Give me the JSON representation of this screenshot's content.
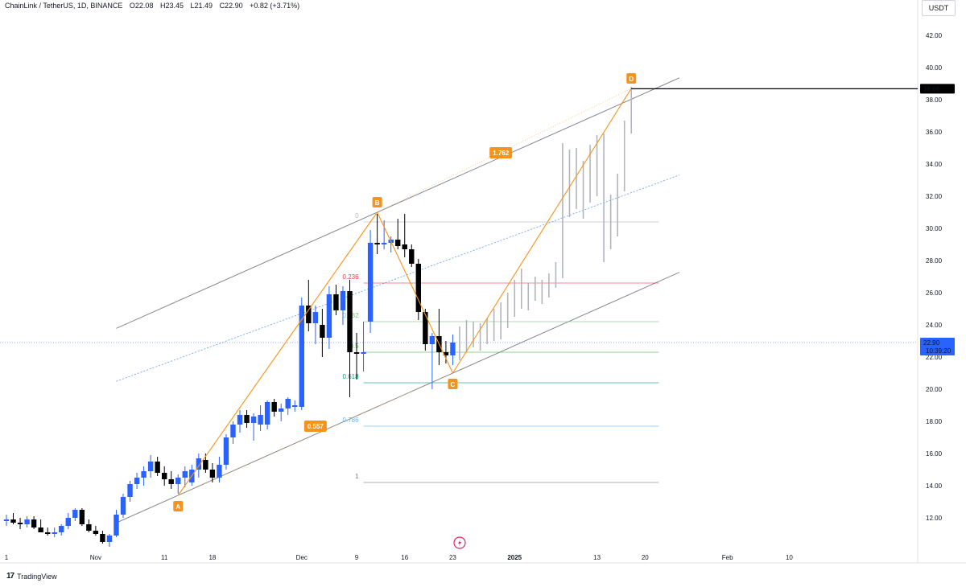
{
  "header": {
    "symbol": "ChainLink / TetherUS, 1D, BINANCE",
    "open": "O22.08",
    "high": "H23.45",
    "low": "L21.49",
    "close": "C22.90",
    "change": "+0.82 (+3.71%)"
  },
  "currency": "USDT",
  "brand": "TradingView",
  "colors": {
    "bull": "#2962ff",
    "bear": "#000000",
    "projection": "#b2b5be",
    "harmonic": "#f7931a",
    "channel": "#787b86",
    "median": "#5b9cf6"
  },
  "chart_data": {
    "type": "candlestick",
    "y_axis": {
      "min": 10,
      "max": 44,
      "ticks": [
        "12.00",
        "14.00",
        "16.00",
        "18.00",
        "20.00",
        "22.00",
        "24.00",
        "26.00",
        "28.00",
        "30.00",
        "32.00",
        "34.00",
        "36.00",
        "38.00",
        "40.00",
        "42.00"
      ]
    },
    "x_axis_labels": [
      {
        "label": "1",
        "day": 1
      },
      {
        "label": "Nov",
        "day": 14
      },
      {
        "label": "11",
        "day": 24
      },
      {
        "label": "18",
        "day": 31
      },
      {
        "label": "Dec",
        "day": 44
      },
      {
        "label": "9",
        "day": 52
      },
      {
        "label": "16",
        "day": 59
      },
      {
        "label": "23",
        "day": 66
      },
      {
        "label": "2025",
        "day": 75
      },
      {
        "label": "13",
        "day": 87
      },
      {
        "label": "20",
        "day": 94
      },
      {
        "label": "Feb",
        "day": 106
      },
      {
        "label": "10",
        "day": 115
      }
    ],
    "candles": [
      {
        "day": 1,
        "o": 11.8,
        "h": 12.2,
        "l": 11.5,
        "c": 11.9
      },
      {
        "day": 2,
        "o": 11.9,
        "h": 12.3,
        "l": 11.6,
        "c": 11.7
      },
      {
        "day": 3,
        "o": 11.7,
        "h": 12.0,
        "l": 11.3,
        "c": 11.6
      },
      {
        "day": 4,
        "o": 11.6,
        "h": 12.1,
        "l": 11.4,
        "c": 11.9
      },
      {
        "day": 5,
        "o": 11.9,
        "h": 12.1,
        "l": 11.3,
        "c": 11.4
      },
      {
        "day": 6,
        "o": 11.4,
        "h": 11.9,
        "l": 11.2,
        "c": 11.1
      },
      {
        "day": 7,
        "o": 11.1,
        "h": 11.4,
        "l": 10.9,
        "c": 11.0
      },
      {
        "day": 8,
        "o": 11.0,
        "h": 11.4,
        "l": 10.8,
        "c": 11.1
      },
      {
        "day": 9,
        "o": 11.1,
        "h": 11.6,
        "l": 10.9,
        "c": 11.5
      },
      {
        "day": 10,
        "o": 11.5,
        "h": 12.3,
        "l": 11.3,
        "c": 12.0
      },
      {
        "day": 11,
        "o": 12.0,
        "h": 12.6,
        "l": 11.8,
        "c": 12.5
      },
      {
        "day": 12,
        "o": 12.5,
        "h": 12.6,
        "l": 11.5,
        "c": 11.6
      },
      {
        "day": 13,
        "o": 11.6,
        "h": 11.9,
        "l": 11.1,
        "c": 11.2
      },
      {
        "day": 14,
        "o": 11.2,
        "h": 11.5,
        "l": 10.9,
        "c": 11.0
      },
      {
        "day": 15,
        "o": 11.0,
        "h": 11.2,
        "l": 10.4,
        "c": 10.5
      },
      {
        "day": 16,
        "o": 10.5,
        "h": 11.0,
        "l": 10.2,
        "c": 10.9
      },
      {
        "day": 17,
        "o": 10.9,
        "h": 12.5,
        "l": 10.8,
        "c": 12.2
      },
      {
        "day": 18,
        "o": 12.2,
        "h": 13.5,
        "l": 12.0,
        "c": 13.3
      },
      {
        "day": 19,
        "o": 13.3,
        "h": 14.3,
        "l": 13.0,
        "c": 14.1
      },
      {
        "day": 20,
        "o": 14.1,
        "h": 14.8,
        "l": 13.8,
        "c": 14.5
      },
      {
        "day": 21,
        "o": 14.5,
        "h": 15.2,
        "l": 14.0,
        "c": 14.9
      },
      {
        "day": 22,
        "o": 14.9,
        "h": 15.9,
        "l": 14.5,
        "c": 15.5
      },
      {
        "day": 23,
        "o": 15.5,
        "h": 15.8,
        "l": 14.6,
        "c": 14.8
      },
      {
        "day": 24,
        "o": 14.8,
        "h": 15.2,
        "l": 14.0,
        "c": 14.4
      },
      {
        "day": 25,
        "o": 14.4,
        "h": 14.9,
        "l": 13.8,
        "c": 14.1
      },
      {
        "day": 26,
        "o": 14.1,
        "h": 14.7,
        "l": 13.5,
        "c": 14.5
      },
      {
        "day": 27,
        "o": 14.5,
        "h": 15.2,
        "l": 13.9,
        "c": 14.9
      },
      {
        "day": 28,
        "o": 14.2,
        "h": 15.3,
        "l": 14.0,
        "c": 15.0
      },
      {
        "day": 29,
        "o": 15.0,
        "h": 16.0,
        "l": 14.5,
        "c": 15.7
      },
      {
        "day": 30,
        "o": 15.6,
        "h": 16.0,
        "l": 14.8,
        "c": 15.0
      },
      {
        "day": 31,
        "o": 15.0,
        "h": 15.4,
        "l": 14.2,
        "c": 14.5
      },
      {
        "day": 32,
        "o": 14.5,
        "h": 15.8,
        "l": 14.2,
        "c": 15.3
      },
      {
        "day": 33,
        "o": 15.3,
        "h": 17.2,
        "l": 15.0,
        "c": 17.0
      },
      {
        "day": 34,
        "o": 17.0,
        "h": 18.0,
        "l": 16.6,
        "c": 17.8
      },
      {
        "day": 35,
        "o": 17.8,
        "h": 18.7,
        "l": 17.3,
        "c": 18.4
      },
      {
        "day": 36,
        "o": 18.4,
        "h": 18.7,
        "l": 17.6,
        "c": 17.9
      },
      {
        "day": 37,
        "o": 17.9,
        "h": 18.5,
        "l": 16.8,
        "c": 18.3
      },
      {
        "day": 38,
        "o": 17.8,
        "h": 19.0,
        "l": 17.4,
        "c": 18.4
      },
      {
        "day": 39,
        "o": 17.8,
        "h": 19.3,
        "l": 17.5,
        "c": 19.2
      },
      {
        "day": 40,
        "o": 19.2,
        "h": 19.4,
        "l": 18.3,
        "c": 18.6
      },
      {
        "day": 41,
        "o": 18.6,
        "h": 19.1,
        "l": 18.0,
        "c": 18.8
      },
      {
        "day": 42,
        "o": 18.8,
        "h": 19.5,
        "l": 18.4,
        "c": 19.4
      },
      {
        "day": 43,
        "o": 18.9,
        "h": 19.3,
        "l": 18.6,
        "c": 19.0
      },
      {
        "day": 44,
        "o": 18.9,
        "h": 25.7,
        "l": 18.7,
        "c": 25.2
      },
      {
        "day": 45,
        "o": 25.2,
        "h": 26.8,
        "l": 23.6,
        "c": 24.1
      },
      {
        "day": 46,
        "o": 24.1,
        "h": 25.2,
        "l": 22.8,
        "c": 24.8
      },
      {
        "day": 47,
        "o": 24.0,
        "h": 25.0,
        "l": 22.0,
        "c": 23.2
      },
      {
        "day": 48,
        "o": 23.2,
        "h": 26.4,
        "l": 22.5,
        "c": 25.9
      },
      {
        "day": 49,
        "o": 25.9,
        "h": 26.5,
        "l": 24.6,
        "c": 24.9
      },
      {
        "day": 50,
        "o": 24.9,
        "h": 26.4,
        "l": 24.0,
        "c": 26.1
      },
      {
        "day": 51,
        "o": 26.1,
        "h": 26.8,
        "l": 19.5,
        "c": 22.3
      },
      {
        "day": 52,
        "o": 22.3,
        "h": 23.5,
        "l": 20.6,
        "c": 22.2
      },
      {
        "day": 53,
        "o": 22.2,
        "h": 24.2,
        "l": 21.1,
        "c": 22.3
      },
      {
        "day": 54,
        "o": 24.2,
        "h": 29.9,
        "l": 23.5,
        "c": 29.1
      },
      {
        "day": 55,
        "o": 29.1,
        "h": 30.9,
        "l": 28.4,
        "c": 29.0
      },
      {
        "day": 56,
        "o": 29.0,
        "h": 30.5,
        "l": 28.7,
        "c": 29.1
      },
      {
        "day": 57,
        "o": 29.1,
        "h": 29.5,
        "l": 28.5,
        "c": 29.3
      },
      {
        "day": 58,
        "o": 29.3,
        "h": 30.6,
        "l": 28.7,
        "c": 28.9
      },
      {
        "day": 59,
        "o": 29.0,
        "h": 30.9,
        "l": 28.2,
        "c": 28.7
      },
      {
        "day": 60,
        "o": 28.7,
        "h": 29.0,
        "l": 27.6,
        "c": 27.8
      },
      {
        "day": 61,
        "o": 27.8,
        "h": 28.1,
        "l": 24.3,
        "c": 24.8
      },
      {
        "day": 62,
        "o": 24.8,
        "h": 25.0,
        "l": 22.4,
        "c": 22.8
      },
      {
        "day": 63,
        "o": 22.8,
        "h": 23.5,
        "l": 20.0,
        "c": 23.3
      },
      {
        "day": 64,
        "o": 23.3,
        "h": 25.0,
        "l": 21.5,
        "c": 22.3
      },
      {
        "day": 65,
        "o": 22.3,
        "h": 23.0,
        "l": 21.6,
        "c": 22.1
      },
      {
        "day": 66,
        "o": 22.1,
        "h": 23.4,
        "l": 21.5,
        "c": 22.9
      }
    ],
    "projection_bars": [
      {
        "day": 67,
        "h": 23.9,
        "l": 21.8
      },
      {
        "day": 68,
        "h": 24.3,
        "l": 22.3
      },
      {
        "day": 69,
        "h": 24.2,
        "l": 22.6
      },
      {
        "day": 70,
        "h": 24.1,
        "l": 22.4
      },
      {
        "day": 71,
        "h": 24.4,
        "l": 22.8
      },
      {
        "day": 72,
        "h": 25.0,
        "l": 23.0
      },
      {
        "day": 73,
        "h": 25.4,
        "l": 23.1
      },
      {
        "day": 74,
        "h": 26.0,
        "l": 23.8
      },
      {
        "day": 75,
        "h": 26.8,
        "l": 24.5
      },
      {
        "day": 76,
        "h": 27.5,
        "l": 25.0
      },
      {
        "day": 77,
        "h": 26.6,
        "l": 24.9
      },
      {
        "day": 78,
        "h": 27.0,
        "l": 25.5
      },
      {
        "day": 79,
        "h": 26.8,
        "l": 25.3
      },
      {
        "day": 80,
        "h": 27.2,
        "l": 25.7
      },
      {
        "day": 81,
        "h": 27.9,
        "l": 26.3
      },
      {
        "day": 82,
        "h": 35.3,
        "l": 26.9
      },
      {
        "day": 83,
        "h": 34.9,
        "l": 30.7
      },
      {
        "day": 84,
        "h": 35.0,
        "l": 31.2
      },
      {
        "day": 85,
        "h": 34.2,
        "l": 30.6
      },
      {
        "day": 86,
        "h": 35.2,
        "l": 31.6
      },
      {
        "day": 87,
        "h": 35.8,
        "l": 32.0
      },
      {
        "day": 88,
        "h": 35.9,
        "l": 27.9
      },
      {
        "day": 89,
        "h": 32.1,
        "l": 28.7
      },
      {
        "day": 90,
        "h": 33.4,
        "l": 29.5
      },
      {
        "day": 91,
        "h": 36.7,
        "l": 32.3
      },
      {
        "day": 92,
        "h": 38.8,
        "l": 35.9
      }
    ],
    "harmonic_pattern": {
      "points": [
        {
          "label": "A",
          "day": 26,
          "value": 13.4
        },
        {
          "label": "B",
          "day": 55,
          "value": 31.0
        },
        {
          "label": "C",
          "day": 66,
          "value": 21.0
        },
        {
          "label": "D",
          "day": 92,
          "value": 38.7
        }
      ],
      "ratios": [
        {
          "label": "0.557",
          "day": 46,
          "value": 17.7
        },
        {
          "label": "1.762",
          "day": 73,
          "value": 34.7
        }
      ]
    },
    "fib_levels": [
      {
        "label": "0",
        "value": 30.4,
        "color": "#b2b5be"
      },
      {
        "label": "0.236",
        "value": 26.6,
        "color": "#f23645"
      },
      {
        "label": "0.382",
        "value": 24.2,
        "color": "#81c784"
      },
      {
        "label": "0.5",
        "value": 22.3,
        "color": "#4caf50"
      },
      {
        "label": "0.618",
        "value": 20.4,
        "color": "#089981"
      },
      {
        "label": "0.786",
        "value": 17.7,
        "color": "#64b5f6"
      },
      {
        "label": "1",
        "value": 14.2,
        "color": "#787b86"
      }
    ],
    "price_labels": [
      {
        "value": 38.68,
        "label": "38.68",
        "color": "#000000"
      },
      {
        "value": 22.9,
        "label": "22.90",
        "sub": "10:39:20",
        "color": "#2962ff"
      }
    ]
  }
}
